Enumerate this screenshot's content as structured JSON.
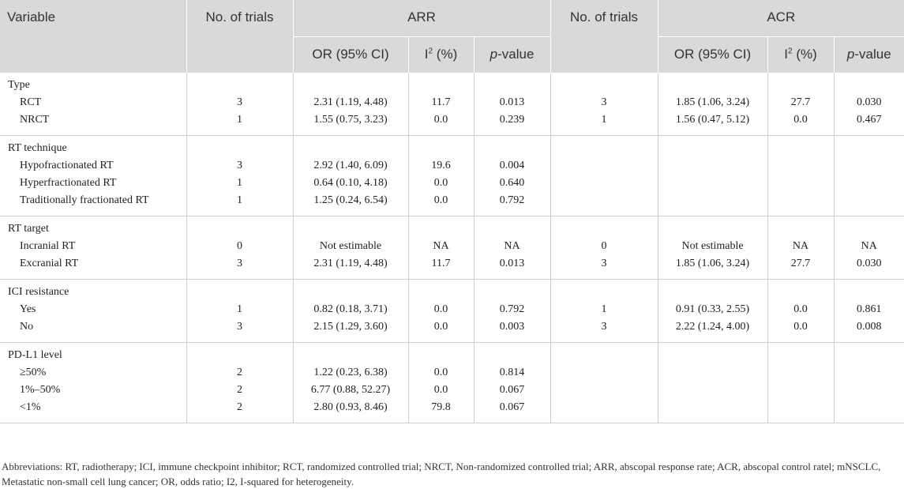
{
  "headers": {
    "variable": "Variable",
    "no_trials_1": "No. of trials",
    "arr": "ARR",
    "no_trials_2": "No. of trials",
    "acr": "ACR",
    "or_ci": "OR (95% CI)",
    "i2_prefix": "I",
    "i2_sup": "2",
    "i2_suffix": " (%)",
    "p_italic": "p",
    "p_suffix": "-value"
  },
  "groups": [
    {
      "title": "Type",
      "rows": [
        {
          "label": "RCT",
          "n1": "3",
          "arr_or": "2.31 (1.19, 4.48)",
          "arr_i2": "11.7",
          "arr_p": "0.013",
          "n2": "3",
          "acr_or": "1.85 (1.06, 3.24)",
          "acr_i2": "27.7",
          "acr_p": "0.030"
        },
        {
          "label": "NRCT",
          "n1": "1",
          "arr_or": "1.55 (0.75, 3.23)",
          "arr_i2": "0.0",
          "arr_p": "0.239",
          "n2": "1",
          "acr_or": "1.56 (0.47, 5.12)",
          "acr_i2": "0.0",
          "acr_p": "0.467"
        }
      ]
    },
    {
      "title": "RT technique",
      "rows": [
        {
          "label": "Hypofractionated RT",
          "n1": "3",
          "arr_or": "2.92 (1.40, 6.09)",
          "arr_i2": "19.6",
          "arr_p": "0.004",
          "n2": "",
          "acr_or": "",
          "acr_i2": "",
          "acr_p": ""
        },
        {
          "label": "Hyperfractionated RT",
          "n1": "1",
          "arr_or": "0.64 (0.10, 4.18)",
          "arr_i2": "0.0",
          "arr_p": "0.640",
          "n2": "",
          "acr_or": "",
          "acr_i2": "",
          "acr_p": ""
        },
        {
          "label": "Traditionally fractionated RT",
          "n1": "1",
          "arr_or": "1.25 (0.24, 6.54)",
          "arr_i2": "0.0",
          "arr_p": "0.792",
          "n2": "",
          "acr_or": "",
          "acr_i2": "",
          "acr_p": ""
        }
      ]
    },
    {
      "title": "RT target",
      "rows": [
        {
          "label": "Incranial RT",
          "n1": "0",
          "arr_or": "Not estimable",
          "arr_i2": "NA",
          "arr_p": "NA",
          "n2": "0",
          "acr_or": "Not estimable",
          "acr_i2": "NA",
          "acr_p": "NA"
        },
        {
          "label": "Excranial RT",
          "n1": "3",
          "arr_or": "2.31 (1.19, 4.48)",
          "arr_i2": "11.7",
          "arr_p": "0.013",
          "n2": "3",
          "acr_or": "1.85 (1.06, 3.24)",
          "acr_i2": "27.7",
          "acr_p": "0.030"
        }
      ]
    },
    {
      "title": "ICI resistance",
      "rows": [
        {
          "label": "Yes",
          "n1": "1",
          "arr_or": "0.82 (0.18, 3.71)",
          "arr_i2": "0.0",
          "arr_p": "0.792",
          "n2": "1",
          "acr_or": "0.91 (0.33, 2.55)",
          "acr_i2": "0.0",
          "acr_p": "0.861"
        },
        {
          "label": "No",
          "n1": "3",
          "arr_or": "2.15 (1.29, 3.60)",
          "arr_i2": "0.0",
          "arr_p": "0.003",
          "n2": "3",
          "acr_or": "2.22 (1.24, 4.00)",
          "acr_i2": "0.0",
          "acr_p": "0.008"
        }
      ]
    },
    {
      "title": "PD-L1 level",
      "rows": [
        {
          "label": "≥50%",
          "n1": "2",
          "arr_or": "1.22 (0.23, 6.38)",
          "arr_i2": "0.0",
          "arr_p": "0.814",
          "n2": "",
          "acr_or": "",
          "acr_i2": "",
          "acr_p": ""
        },
        {
          "label": "1%–50%",
          "n1": "2",
          "arr_or": "6.77 (0.88, 52.27)",
          "arr_i2": "0.0",
          "arr_p": "0.067",
          "n2": "",
          "acr_or": "",
          "acr_i2": "",
          "acr_p": ""
        },
        {
          "label": "<1%",
          "n1": "2",
          "arr_or": "2.80 (0.93, 8.46)",
          "arr_i2": "79.8",
          "arr_p": "0.067",
          "n2": "",
          "acr_or": "",
          "acr_i2": "",
          "acr_p": ""
        }
      ]
    }
  ],
  "footnote": "Abbreviations: RT, radiotherapy; ICI, immune checkpoint inhibitor; RCT, randomized controlled trial; NRCT, Non-randomized controlled trial; ARR, abscopal response rate; ACR, abscopal control ratel; mNSCLC, Metastatic non-small cell lung cancer; OR, odds ratio; I2, I-squared for heterogeneity."
}
